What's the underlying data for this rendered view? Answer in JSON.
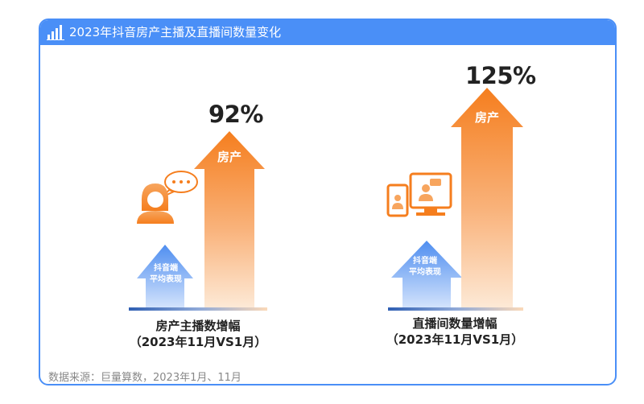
{
  "header": {
    "title": "2023年抖音房产主播及直播间数量变化"
  },
  "source_text": "数据来源：巨量算数，2023年1月、11月",
  "colors": {
    "accent_blue": "#4a8ff7",
    "orange_dark": "#f57e1e",
    "orange_light": "#fce4cc",
    "blue_dark": "#4f8ef0",
    "blue_light": "#cfe0fb"
  },
  "chart_data": [
    {
      "type": "bar",
      "categories": [
        "抖音端平均表现",
        "房产"
      ],
      "values": [
        null,
        92
      ],
      "value_labels": [
        "",
        "92%"
      ],
      "caption": "房产主播数增幅",
      "caption_sub": "（2023年11月VS1月）",
      "icon": "female-chat-icon"
    },
    {
      "type": "bar",
      "categories": [
        "抖音端平均表现",
        "房产"
      ],
      "values": [
        null,
        125
      ],
      "value_labels": [
        "",
        "125%"
      ],
      "caption": "直播间数量增幅",
      "caption_sub": "（2023年11月VS1月）",
      "icon": "monitor-tablet-icon"
    }
  ],
  "labels": {
    "avg_line1": "抖音端",
    "avg_line2": "平均表现",
    "fang_label": "房产"
  }
}
